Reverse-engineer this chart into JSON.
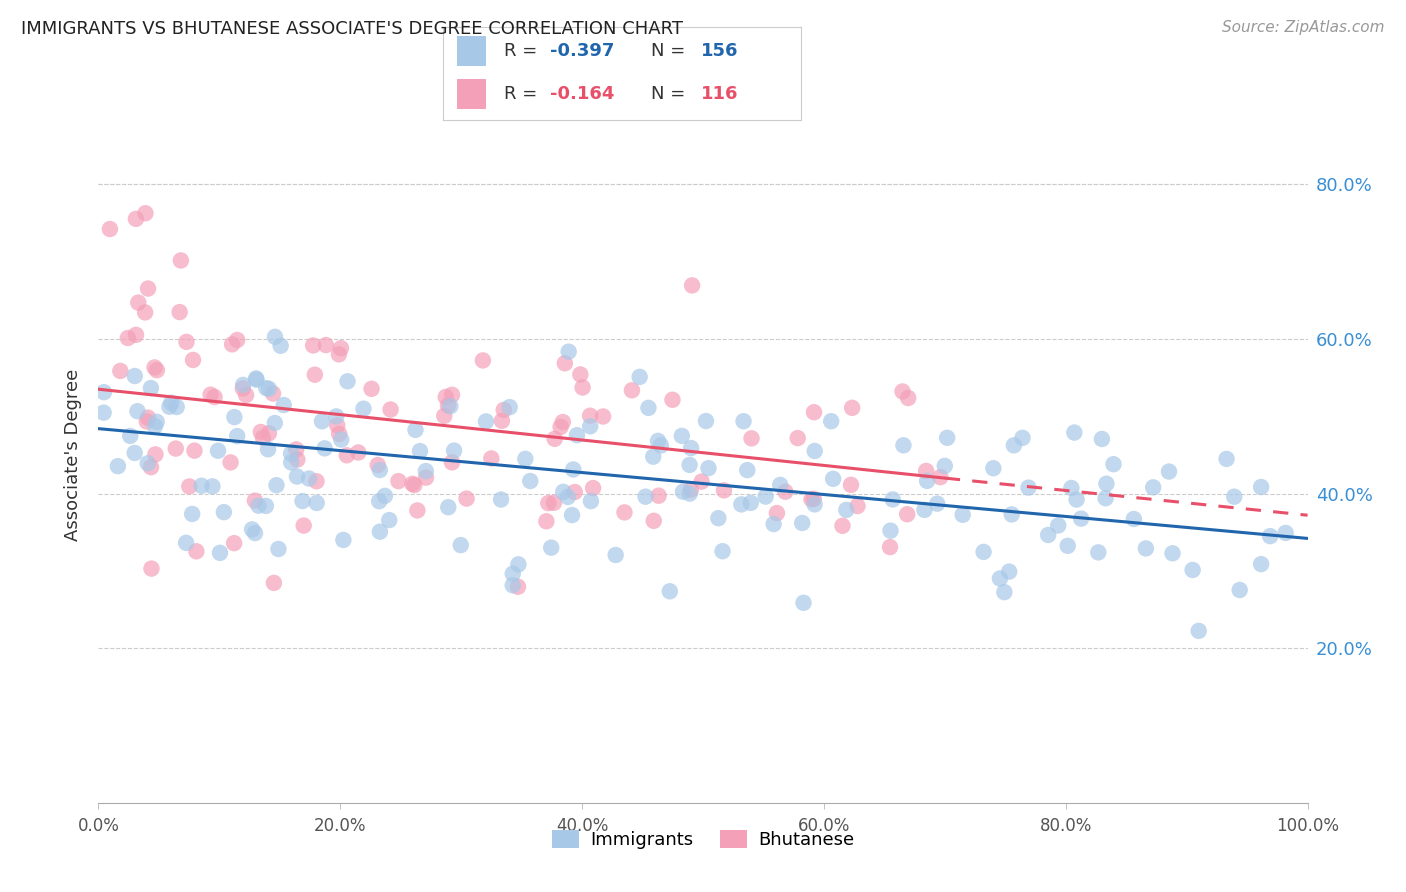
{
  "title": "IMMIGRANTS VS BHUTANESE ASSOCIATE'S DEGREE CORRELATION CHART",
  "source": "Source: ZipAtlas.com",
  "ylabel": "Associate's Degree",
  "legend_immigrants_R": "-0.397",
  "legend_immigrants_N": "156",
  "legend_bhutanese_R": "-0.164",
  "legend_bhutanese_N": "116",
  "immigrants_color": "#a8c8e8",
  "bhutanese_color": "#f4a0b8",
  "trend_immigrants_color": "#2166ac",
  "trend_bhutanese_color": "#e8506a",
  "background_color": "#ffffff",
  "grid_color": "#cccccc",
  "right_axis_color": "#3a8fd4",
  "ytick_labels": [
    "20.0%",
    "40.0%",
    "60.0%",
    "80.0%"
  ],
  "ytick_values": [
    0.2,
    0.4,
    0.6,
    0.8
  ],
  "xmin": 0.0,
  "xmax": 1.0,
  "ymin": 0.0,
  "ymax": 0.9,
  "imm_trend_x0": 0.0,
  "imm_trend_y0": 0.484,
  "imm_trend_x1": 1.0,
  "imm_trend_y1": 0.342,
  "bhu_trend_x0": 0.0,
  "bhu_trend_y0": 0.535,
  "bhu_trend_x1": 0.7,
  "bhu_trend_y1": 0.42,
  "bhu_trend_dashed_x0": 0.7,
  "bhu_trend_dashed_y0": 0.42,
  "bhu_trend_dashed_x1": 1.0,
  "bhu_trend_dashed_y1": 0.372
}
